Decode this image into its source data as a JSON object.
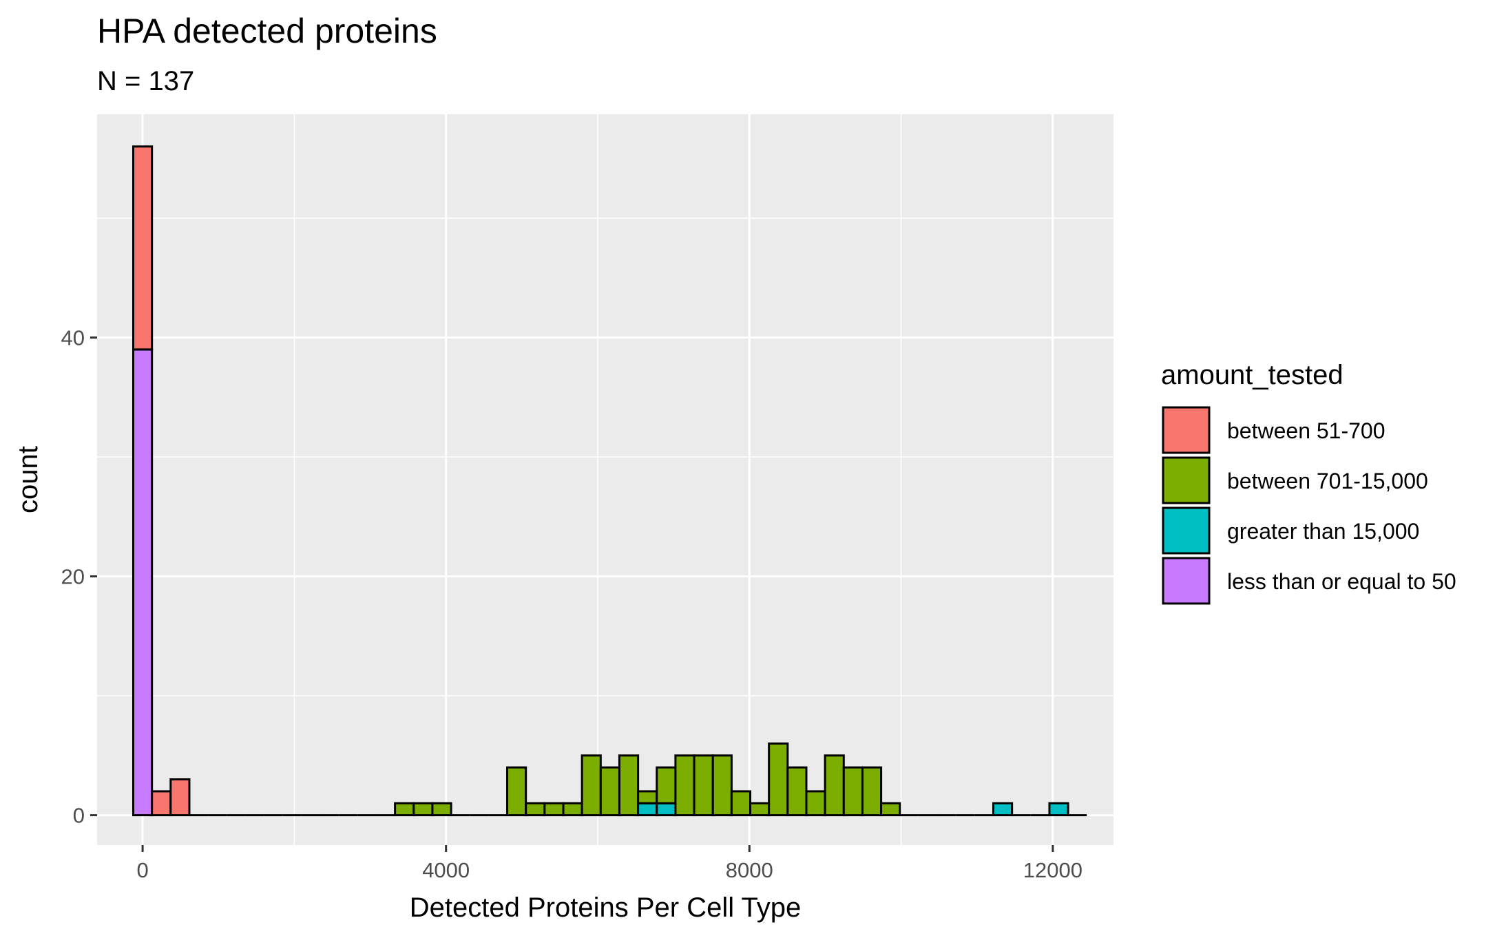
{
  "chart_data": {
    "type": "bar",
    "title": "HPA detected proteins",
    "subtitle": "N =  137",
    "xlabel": "Detected Proteins Per Cell Type",
    "ylabel": "count",
    "xlim": [
      -600,
      12800
    ],
    "ylim": [
      -2.5,
      58.7
    ],
    "x_ticks": [
      0,
      4000,
      8000,
      12000
    ],
    "x_tick_labels": [
      "0",
      "4000",
      "8000",
      "12000"
    ],
    "y_ticks": [
      0,
      20,
      40
    ],
    "y_tick_labels": [
      "0",
      "20",
      "40"
    ],
    "x_minor": [
      2000,
      6000,
      10000
    ],
    "y_minor": [
      10,
      30,
      50
    ],
    "grid": true,
    "bin_width": 246.5,
    "bin_start": -123.25,
    "bin_count": 51,
    "legend": {
      "title": "amount_tested",
      "position": "right",
      "entries": [
        {
          "label": "between 51-700",
          "color": "#F8766D"
        },
        {
          "label": "between 701-15,000",
          "color": "#7CAE00"
        },
        {
          "label": "greater than 15,000",
          "color": "#00BFC4"
        },
        {
          "label": "less than or equal to 50",
          "color": "#C77CFF"
        }
      ]
    },
    "series_stack_order": [
      "less than or equal to 50",
      "greater than 15,000",
      "between 701-15,000",
      "between 51-700"
    ],
    "series": [
      {
        "name": "less than or equal to 50",
        "color": "#C77CFF",
        "bins": [
          {
            "bin": 0,
            "count": 39
          }
        ]
      },
      {
        "name": "between 51-700",
        "color": "#F8766D",
        "bins": [
          {
            "bin": 0,
            "count": 17
          },
          {
            "bin": 1,
            "count": 2
          },
          {
            "bin": 2,
            "count": 3
          }
        ]
      },
      {
        "name": "between 701-15,000",
        "color": "#7CAE00",
        "bins": [
          {
            "bin": 14,
            "count": 1
          },
          {
            "bin": 15,
            "count": 1
          },
          {
            "bin": 16,
            "count": 1
          },
          {
            "bin": 20,
            "count": 4
          },
          {
            "bin": 21,
            "count": 1
          },
          {
            "bin": 22,
            "count": 1
          },
          {
            "bin": 23,
            "count": 1
          },
          {
            "bin": 24,
            "count": 5
          },
          {
            "bin": 25,
            "count": 4
          },
          {
            "bin": 26,
            "count": 5
          },
          {
            "bin": 27,
            "count": 1
          },
          {
            "bin": 28,
            "count": 3
          },
          {
            "bin": 29,
            "count": 5
          },
          {
            "bin": 30,
            "count": 5
          },
          {
            "bin": 31,
            "count": 5
          },
          {
            "bin": 32,
            "count": 2
          },
          {
            "bin": 33,
            "count": 1
          },
          {
            "bin": 34,
            "count": 6
          },
          {
            "bin": 35,
            "count": 4
          },
          {
            "bin": 36,
            "count": 2
          },
          {
            "bin": 37,
            "count": 5
          },
          {
            "bin": 38,
            "count": 4
          },
          {
            "bin": 39,
            "count": 4
          },
          {
            "bin": 40,
            "count": 1
          }
        ]
      },
      {
        "name": "greater than 15,000",
        "color": "#00BFC4",
        "bins": [
          {
            "bin": 27,
            "count": 1
          },
          {
            "bin": 28,
            "count": 1
          },
          {
            "bin": 46,
            "count": 1
          },
          {
            "bin": 49,
            "count": 1
          }
        ]
      }
    ]
  }
}
